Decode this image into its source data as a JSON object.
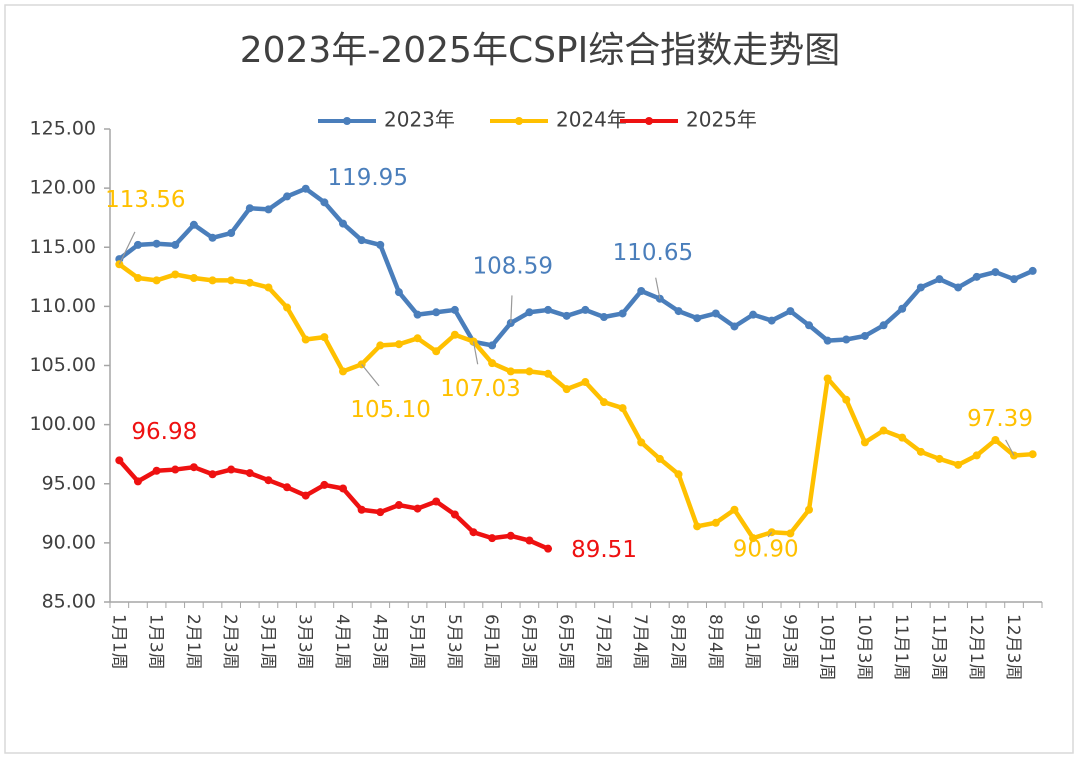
{
  "chart_data": {
    "type": "line",
    "title": "2023年-2025年CSPI综合指数走势图",
    "categories": [
      "1月1周",
      null,
      "1月3周",
      null,
      "2月1周",
      null,
      "2月3周",
      null,
      "3月1周",
      null,
      "3月3周",
      null,
      "4月1周",
      null,
      "4月3周",
      null,
      "5月1周",
      null,
      "5月3周",
      null,
      "6月1周",
      null,
      "6月3周",
      null,
      "6月5周",
      null,
      "7月2周",
      null,
      "7月4周",
      null,
      "8月2周",
      null,
      "8月4周",
      null,
      "9月1周",
      null,
      "9月3周",
      null,
      "10月1周",
      null,
      "10月3周",
      null,
      "11月1周",
      null,
      "11月3周",
      null,
      "12月1周",
      null,
      "12月3周",
      null
    ],
    "series": [
      {
        "name": "2023年",
        "color": "#4a7ebb",
        "values": [
          114.0,
          115.2,
          115.3,
          115.2,
          116.9,
          115.8,
          116.2,
          118.3,
          118.2,
          119.3,
          119.95,
          118.8,
          117.0,
          115.6,
          115.2,
          111.2,
          109.3,
          109.5,
          109.7,
          107.0,
          106.7,
          108.59,
          109.5,
          109.7,
          109.2,
          109.7,
          109.1,
          109.4,
          111.3,
          110.65,
          109.6,
          109.0,
          109.4,
          108.3,
          109.3,
          108.8,
          109.6,
          108.4,
          107.1,
          107.2,
          107.5,
          108.4,
          109.8,
          111.6,
          112.3,
          111.6,
          112.5,
          112.9,
          112.3,
          113.0
        ],
        "value_labels": [
          null,
          null,
          null,
          null,
          null,
          null,
          null,
          null,
          null,
          null,
          "119.95",
          null,
          null,
          null,
          null,
          null,
          null,
          null,
          null,
          null,
          null,
          "108.59",
          null,
          null,
          null,
          null,
          null,
          null,
          null,
          "110.65",
          null,
          null,
          null,
          null,
          null,
          null,
          null,
          null,
          null,
          null,
          null,
          null,
          null,
          null,
          null,
          null,
          null,
          null,
          null,
          null
        ]
      },
      {
        "name": "2024年",
        "color": "#ffc000",
        "values": [
          113.56,
          112.4,
          112.2,
          112.7,
          112.4,
          112.2,
          112.2,
          112.0,
          111.6,
          109.9,
          107.2,
          107.4,
          104.5,
          105.1,
          106.7,
          106.8,
          107.3,
          106.2,
          107.6,
          107.03,
          105.2,
          104.5,
          104.5,
          104.3,
          103.0,
          103.6,
          101.9,
          101.4,
          98.5,
          97.1,
          95.8,
          91.4,
          91.7,
          92.8,
          90.4,
          90.9,
          90.8,
          92.8,
          103.9,
          102.1,
          98.5,
          99.5,
          98.9,
          97.7,
          97.1,
          96.6,
          97.4,
          98.7,
          97.39,
          97.5
        ],
        "value_labels": [
          "113.56",
          null,
          null,
          null,
          null,
          null,
          null,
          null,
          null,
          null,
          null,
          null,
          null,
          "105.10",
          null,
          null,
          null,
          null,
          null,
          "107.03",
          null,
          null,
          null,
          null,
          null,
          null,
          null,
          null,
          null,
          null,
          null,
          null,
          null,
          null,
          null,
          "90.90",
          null,
          null,
          null,
          null,
          null,
          null,
          null,
          null,
          null,
          null,
          null,
          null,
          "97.39",
          null
        ]
      },
      {
        "name": "2025年",
        "color": "#ee1111",
        "values": [
          96.98,
          95.2,
          96.1,
          96.2,
          96.4,
          95.8,
          96.2,
          95.9,
          95.3,
          94.7,
          94.0,
          94.9,
          94.6,
          92.8,
          92.6,
          93.2,
          92.9,
          93.5,
          92.4,
          90.9,
          90.4,
          90.6,
          90.2,
          89.51,
          null,
          null,
          null,
          null,
          null,
          null,
          null,
          null,
          null,
          null,
          null,
          null,
          null,
          null,
          null,
          null,
          null,
          null,
          null,
          null,
          null,
          null,
          null,
          null,
          null,
          null
        ],
        "value_labels": [
          "96.98",
          null,
          null,
          null,
          null,
          null,
          null,
          null,
          null,
          null,
          null,
          null,
          null,
          null,
          null,
          null,
          null,
          null,
          null,
          null,
          null,
          null,
          null,
          "89.51",
          null,
          null,
          null,
          null,
          null,
          null,
          null,
          null,
          null,
          null,
          null,
          null,
          null,
          null,
          null,
          null,
          null,
          null,
          null,
          null,
          null,
          null,
          null,
          null,
          null,
          null
        ]
      }
    ],
    "ylim": [
      85,
      125
    ],
    "yticks": [
      {
        "value": 85,
        "label": "85.00"
      },
      {
        "value": 90,
        "label": "90.00"
      },
      {
        "value": 95,
        "label": "95.00"
      },
      {
        "value": 100,
        "label": "100.00"
      },
      {
        "value": 105,
        "label": "105.00"
      },
      {
        "value": 110,
        "label": "110.00"
      },
      {
        "value": 115,
        "label": "115.00"
      },
      {
        "value": 120,
        "label": "120.00"
      },
      {
        "value": 125,
        "label": "125.00"
      }
    ],
    "grid": false,
    "legend": "top"
  }
}
